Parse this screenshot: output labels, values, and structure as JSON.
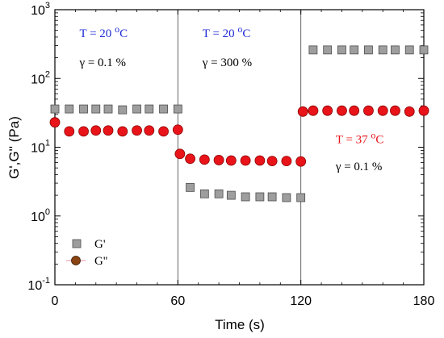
{
  "chart_data": {
    "type": "scatter",
    "xlabel": "Time (s)",
    "ylabel": "G',G'' (Pa)",
    "x_ticks": [
      "0",
      "60",
      "120",
      "180"
    ],
    "xlim": [
      0,
      180
    ],
    "ylim": [
      0.1,
      1000
    ],
    "y_scale": "log",
    "y_ticks": [
      {
        "base": "10",
        "exp": "-1",
        "value": 0.1
      },
      {
        "base": "10",
        "exp": "0",
        "value": 1
      },
      {
        "base": "10",
        "exp": "1",
        "value": 10
      },
      {
        "base": "10",
        "exp": "2",
        "value": 100
      },
      {
        "base": "10",
        "exp": "3",
        "value": 1000
      }
    ],
    "vlines": [
      60,
      120
    ],
    "grid": false,
    "legend_position": "bottom-left",
    "series": [
      {
        "name": "G'",
        "marker": "square",
        "color": "#9e9e9e",
        "edge": "#4d4d4d",
        "x": [
          0,
          7,
          14,
          20,
          26,
          33,
          40,
          46,
          53,
          60,
          66,
          73,
          80,
          86,
          93,
          100,
          106,
          113,
          120,
          126,
          133,
          140,
          146,
          153,
          160,
          166,
          173,
          180
        ],
        "y": [
          36,
          36,
          36,
          36,
          36,
          35,
          36,
          36,
          36,
          36,
          2.6,
          2.1,
          2.1,
          2.0,
          1.9,
          1.9,
          1.9,
          1.85,
          1.85,
          260,
          260,
          260,
          260,
          260,
          260,
          260,
          260,
          260
        ]
      },
      {
        "name": "G''",
        "marker": "circle",
        "color": "#e8141a",
        "edge": "#8b0000",
        "x": [
          0,
          7,
          14,
          20,
          26,
          33,
          40,
          46,
          53,
          60,
          61,
          66,
          73,
          80,
          86,
          93,
          100,
          106,
          113,
          120,
          121,
          126,
          133,
          140,
          146,
          153,
          160,
          166,
          173,
          180
        ],
        "y": [
          23,
          17,
          17,
          17.5,
          17.5,
          17,
          17.5,
          17.5,
          17,
          18,
          8.0,
          6.8,
          6.6,
          6.5,
          6.4,
          6.4,
          6.4,
          6.3,
          6.3,
          6.2,
          33,
          34,
          34,
          34,
          34,
          34,
          34,
          34,
          33,
          34
        ]
      }
    ],
    "annotations": [
      {
        "id": "a1",
        "x": 12,
        "y": 400,
        "color": "#1f2bd6",
        "kind": "temp",
        "text": "T = 20 ",
        "sup": "o",
        "unit": "C"
      },
      {
        "id": "a2",
        "x": 12,
        "y": 150,
        "color": "#000000",
        "kind": "plain",
        "text": "γ = 0.1 %"
      },
      {
        "id": "a3",
        "x": 72,
        "y": 400,
        "color": "#1f2bd6",
        "kind": "temp",
        "text": "T = 20 ",
        "sup": "o",
        "unit": "C"
      },
      {
        "id": "a4",
        "x": 72,
        "y": 150,
        "color": "#000000",
        "kind": "plain",
        "text": "γ = 300 %"
      },
      {
        "id": "a5",
        "x": 137,
        "y": 11.5,
        "color": "#e8141a",
        "kind": "temp",
        "text": "T = 37 ",
        "sup": "o",
        "unit": "C"
      },
      {
        "id": "a6",
        "x": 137,
        "y": 4.6,
        "color": "#000000",
        "kind": "plain",
        "text": "γ = 0.1 %"
      }
    ]
  }
}
